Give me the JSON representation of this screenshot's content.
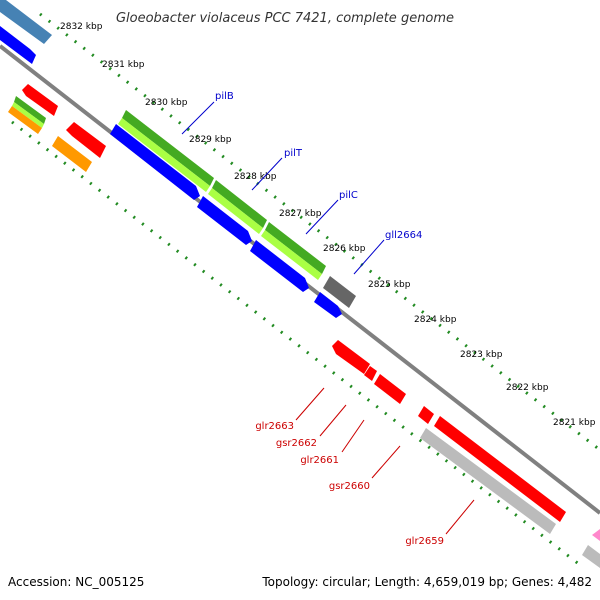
{
  "title": "Gloeobacter violaceus PCC 7421, complete genome",
  "footer": {
    "accession": "Accession: NC_005125",
    "stats": "Topology: circular; Length: 4,659,019 bp; Genes: 4,482"
  },
  "ticks": [
    "2832 kbp",
    "2831 kbp",
    "2830 kbp",
    "2829 kbp",
    "2828 kbp",
    "2827 kbp",
    "2826 kbp",
    "2825 kbp",
    "2824 kbp",
    "2823 kbp",
    "2822 kbp",
    "2821 kbp"
  ],
  "genes_forward": [
    {
      "name": "pilB",
      "color": "#0000cc"
    },
    {
      "name": "pilT",
      "color": "#0000cc"
    },
    {
      "name": "pilC",
      "color": "#0000cc"
    },
    {
      "name": "gll2664",
      "color": "#0000cc"
    }
  ],
  "genes_reverse": [
    {
      "name": "glr2663",
      "color": "#cc0000"
    },
    {
      "name": "gsr2662",
      "color": "#cc0000"
    },
    {
      "name": "glr2661",
      "color": "#cc0000"
    },
    {
      "name": "gsr2660",
      "color": "#cc0000"
    },
    {
      "name": "glr2659",
      "color": "#cc0000"
    }
  ],
  "colors": {
    "backbone": "#808080",
    "forward_gene": "#0000ff",
    "reverse_gene": "#ff0000",
    "cog_green": "#44aa22",
    "cog_lightgreen": "#aaff44",
    "cog_grey": "#bbbbbb",
    "cog_darkgrey": "#666666",
    "cog_orange": "#ff9900",
    "cog_steelblue": "#4682b4",
    "gc_skew": "#228b22"
  }
}
